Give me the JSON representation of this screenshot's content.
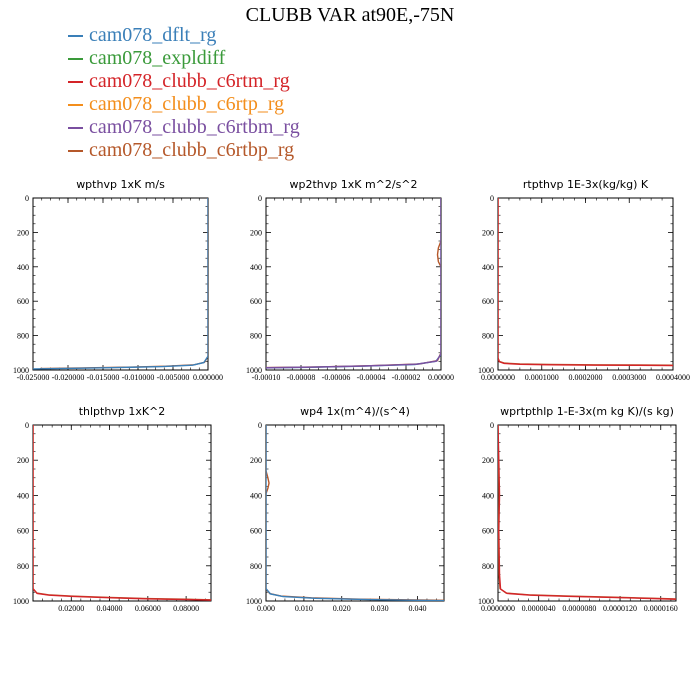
{
  "title": "CLUBB VAR at90E,-75N",
  "legend": [
    {
      "name": "cam078_dflt_rg",
      "color": "#3a7fb8"
    },
    {
      "name": "cam078_expldiff",
      "color": "#3a9a3a"
    },
    {
      "name": "cam078_clubb_c6rtm_rg",
      "color": "#d42428"
    },
    {
      "name": "cam078_clubb_c6rtp_rg",
      "color": "#f38e1c"
    },
    {
      "name": "cam078_clubb_c6rtbm_rg",
      "color": "#7a4fa0"
    },
    {
      "name": "cam078_clubb_c6rtbp_rg",
      "color": "#b5582a"
    }
  ],
  "chart_data": [
    {
      "type": "line",
      "title": "wpthvp  1xK m/s",
      "xlim": [
        -0.025,
        0.0
      ],
      "ylim": [
        1000,
        0
      ],
      "xticks": [
        -0.025,
        -0.02,
        -0.015,
        -0.01,
        -0.005,
        0.0
      ],
      "xtick_labels": [
        "-0.025000",
        "-0.020000",
        "-0.015000",
        "-0.010000",
        "-0.005000",
        "0.000000"
      ],
      "yticks": [
        0,
        200,
        400,
        600,
        800,
        1000
      ],
      "ytick_labels": [
        "0",
        "200",
        "400",
        "600",
        "800",
        "1000"
      ],
      "series": [
        {
          "color": "#b5582a",
          "x": [
            0.0,
            0.0,
            -0.0005,
            -0.002,
            -0.006,
            -0.012,
            -0.018,
            -0.024
          ],
          "y": [
            0,
            920,
            955,
            970,
            978,
            984,
            988,
            992
          ]
        },
        {
          "color": "#3a7fb8",
          "x": [
            0.0,
            0.0,
            -0.0006,
            -0.0022,
            -0.0065,
            -0.013,
            -0.019,
            -0.025
          ],
          "y": [
            0,
            920,
            957,
            972,
            980,
            986,
            990,
            994
          ]
        }
      ]
    },
    {
      "type": "line",
      "title": "wp2thvp  1xK m^2/s^2",
      "xlim": [
        -0.0001,
        0.0
      ],
      "ylim": [
        1000,
        0
      ],
      "xticks": [
        -0.0001,
        -8e-05,
        -6e-05,
        -4e-05,
        -2e-05,
        0.0
      ],
      "xtick_labels": [
        "-0.00010",
        "-0.00008",
        "-0.00006",
        "-0.00004",
        "-0.00002",
        "0.00000"
      ],
      "yticks": [
        0,
        200,
        400,
        600,
        800,
        1000
      ],
      "ytick_labels": [
        "0",
        "200",
        "400",
        "600",
        "800",
        "1000"
      ],
      "series": [
        {
          "color": "#b5582a",
          "x": [
            0.0,
            0.0,
            -1.5e-06,
            -2e-06,
            -1.5e-06,
            0.0,
            0.0,
            -2e-06,
            -1.2e-05,
            -4e-05,
            -7e-05,
            -0.0001
          ],
          "y": [
            0,
            250,
            290,
            330,
            370,
            400,
            900,
            945,
            965,
            975,
            982,
            986
          ]
        },
        {
          "color": "#3a7fb8",
          "x": [
            0.0,
            0.0,
            -3e-06,
            -1.5e-05,
            -4.5e-05,
            -7.5e-05,
            -0.0001
          ],
          "y": [
            0,
            910,
            950,
            968,
            978,
            984,
            988
          ]
        },
        {
          "color": "#7a4fa0",
          "x": [
            0.0,
            0.0,
            -2.5e-06,
            -1.4e-05,
            -4.2e-05,
            -7.2e-05,
            -0.0001
          ],
          "y": [
            0,
            905,
            948,
            966,
            976,
            983,
            987
          ]
        }
      ]
    },
    {
      "type": "line",
      "title": "rtpthvp  1E-3x(kg/kg) K",
      "xlim": [
        0.0,
        0.0004
      ],
      "ylim": [
        1000,
        0
      ],
      "xticks": [
        0.0,
        0.0001,
        0.0002,
        0.0003,
        0.0004
      ],
      "xtick_labels": [
        "0.0000000",
        "0.0001000",
        "0.0002000",
        "0.0003000",
        "0.0004000"
      ],
      "yticks": [
        0,
        200,
        400,
        600,
        800,
        1000
      ],
      "ytick_labels": [
        "0",
        "200",
        "400",
        "600",
        "800",
        "1000"
      ],
      "series": [
        {
          "color": "#b5582a",
          "x": [
            0.0,
            0.0,
            3e-06,
            1.5e-05,
            5e-05,
            0.00012,
            0.00022,
            0.00032,
            0.0004
          ],
          "y": [
            0,
            930,
            950,
            960,
            965,
            968,
            970,
            971,
            972
          ]
        },
        {
          "color": "#d42428",
          "x": [
            0.0,
            0.0,
            3e-06,
            1.4e-05,
            5e-05,
            0.00012,
            0.00022,
            0.00032,
            0.0004
          ],
          "y": [
            0,
            930,
            952,
            962,
            967,
            970,
            972,
            973,
            974
          ]
        }
      ]
    },
    {
      "type": "line",
      "title": "thlpthvp  1xK^2",
      "xlim": [
        0.0,
        0.093
      ],
      "ylim": [
        1000,
        0
      ],
      "xticks": [
        0.02,
        0.04,
        0.06,
        0.08
      ],
      "xtick_labels": [
        "0.02000",
        "0.04000",
        "0.06000",
        "0.08000"
      ],
      "yticks": [
        0,
        200,
        400,
        600,
        800,
        1000
      ],
      "ytick_labels": [
        "0",
        "200",
        "400",
        "600",
        "800",
        "1000"
      ],
      "series": [
        {
          "color": "#b5582a",
          "x": [
            0.0,
            0.0,
            0.002,
            0.008,
            0.02,
            0.04,
            0.06,
            0.08,
            0.093
          ],
          "y": [
            0,
            930,
            955,
            965,
            972,
            980,
            986,
            990,
            993
          ]
        },
        {
          "color": "#d42428",
          "x": [
            0.0,
            0.0,
            0.0022,
            0.0085,
            0.021,
            0.041,
            0.061,
            0.081,
            0.093
          ],
          "y": [
            0,
            930,
            957,
            967,
            974,
            982,
            988,
            992,
            995
          ]
        }
      ]
    },
    {
      "type": "line",
      "title": "wp4  1x(m^4)/(s^4)",
      "xlim": [
        0.0,
        0.047
      ],
      "ylim": [
        1000,
        0
      ],
      "xticks": [
        0.0,
        0.01,
        0.02,
        0.03,
        0.04
      ],
      "xtick_labels": [
        "0.000",
        "0.010",
        "0.020",
        "0.030",
        "0.040"
      ],
      "yticks": [
        0,
        200,
        400,
        600,
        800,
        1000
      ],
      "ytick_labels": [
        "0",
        "200",
        "400",
        "600",
        "800",
        "1000"
      ],
      "series": [
        {
          "color": "#b5582a",
          "x": [
            0.0,
            0.0,
            0.0005,
            0.0008,
            0.0005,
            0.0,
            0.0,
            0.001,
            0.004,
            0.012,
            0.025,
            0.047
          ],
          "y": [
            0,
            260,
            300,
            330,
            360,
            390,
            930,
            958,
            972,
            982,
            990,
            996
          ]
        },
        {
          "color": "#3a7fb8",
          "x": [
            0.0,
            0.0,
            0.0012,
            0.0045,
            0.013,
            0.027,
            0.047
          ],
          "y": [
            0,
            930,
            960,
            975,
            985,
            992,
            998
          ]
        }
      ]
    },
    {
      "type": "line",
      "title": "wprtpthlp  1-E-3x(m kg K)/(s kg)",
      "xlim": [
        0.0,
        1.75e-05
      ],
      "ylim": [
        1000,
        0
      ],
      "xticks": [
        0.0,
        4e-06,
        8e-06,
        1.2e-05,
        1.6e-05
      ],
      "xtick_labels": [
        "0.0000000",
        "0.0000040",
        "0.0000080",
        "0.0000120",
        "0.0000160"
      ],
      "yticks": [
        0,
        200,
        400,
        600,
        800,
        1000
      ],
      "ytick_labels": [
        "0",
        "200",
        "400",
        "600",
        "800",
        "1000"
      ],
      "series": [
        {
          "color": "#b5582a",
          "x": [
            0.0,
            5e-08,
            1e-07,
            5e-08,
            1e-07,
            2e-07,
            8e-07,
            3e-06,
            7e-06,
            1.1e-05,
            1.5e-05,
            1.75e-05
          ],
          "y": [
            0,
            200,
            400,
            600,
            850,
            930,
            955,
            965,
            972,
            978,
            984,
            988
          ]
        },
        {
          "color": "#d42428",
          "x": [
            0.0,
            8e-08,
            1.5e-07,
            8e-08,
            1.5e-07,
            2.5e-07,
            9e-07,
            3.2e-06,
            7.2e-06,
            1.12e-05,
            1.52e-05,
            1.75e-05
          ],
          "y": [
            0,
            200,
            400,
            600,
            850,
            932,
            957,
            967,
            974,
            980,
            986,
            990
          ]
        }
      ]
    }
  ]
}
